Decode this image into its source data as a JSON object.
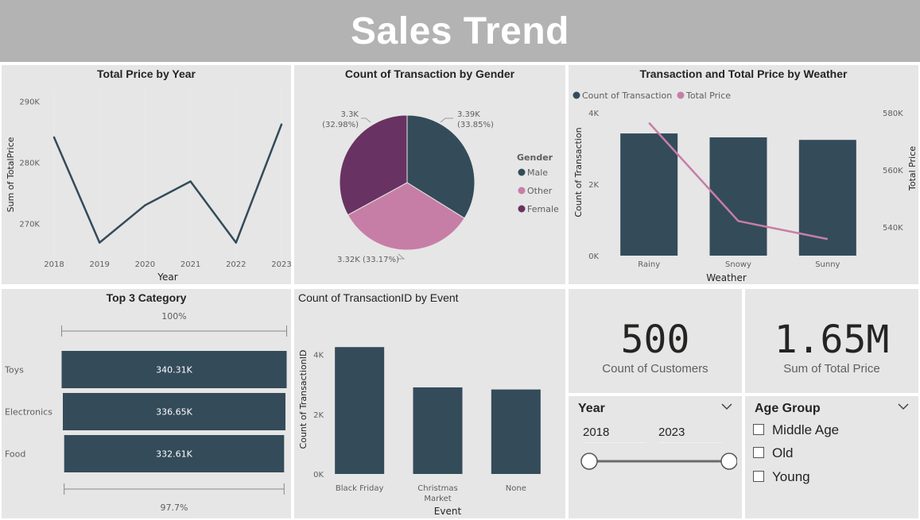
{
  "page": {
    "title": "Sales Trend"
  },
  "colors": {
    "bar": "#344b5a",
    "male": "#344b5a",
    "other": "#c77ea6",
    "female": "#683362",
    "line": "#344b5a",
    "total_price_line": "#c77ea6",
    "panel": "#e6e6e6",
    "header": "#b3b3b3"
  },
  "panels": {
    "price_by_year": {
      "title": "Total Price by Year"
    },
    "gender": {
      "title": "Count of Transaction by Gender"
    },
    "weather": {
      "title": "Transaction and Total Price by Weather"
    },
    "category": {
      "title": "Top 3 Category"
    },
    "event": {
      "title": "Count of TransactionID by Event"
    }
  },
  "chart_data": [
    {
      "id": "price_by_year",
      "type": "line",
      "title": "Total Price by Year",
      "xlabel": "Year",
      "ylabel": "Sum of TotalPrice",
      "x": [
        "2018",
        "2019",
        "2020",
        "2021",
        "2022",
        "2023"
      ],
      "values": [
        284100,
        266900,
        273000,
        276900,
        266900,
        286200
      ],
      "yticks": [
        "290K",
        "280K",
        "270K"
      ],
      "ylim": [
        264000,
        292000
      ]
    },
    {
      "id": "gender",
      "type": "pie",
      "title": "Count of Transaction by Gender",
      "legend_title": "Gender",
      "slices": [
        {
          "name": "Male",
          "value": 3390,
          "label": "3.39K",
          "pct": "(33.85%)"
        },
        {
          "name": "Other",
          "value": 3320,
          "label": "3.32K (33.17%)",
          "pct": ""
        },
        {
          "name": "Female",
          "value": 3300,
          "label": "3.3K",
          "pct": "(32.98%)"
        }
      ]
    },
    {
      "id": "weather",
      "type": "bar",
      "title": "Transaction and Total Price by Weather",
      "xlabel": "Weather",
      "ylabel": "Count of Transaction",
      "y2label": "Total Price",
      "categories": [
        "Rainy",
        "Snowy",
        "Sunny"
      ],
      "series": [
        {
          "name": "Count of Transaction",
          "values": [
            3420,
            3310,
            3240
          ]
        },
        {
          "name": "Total Price",
          "values": [
            576500,
            542100,
            535800
          ]
        }
      ],
      "yticks": [
        "4K",
        "2K",
        "0K"
      ],
      "y2ticks": [
        "580K",
        "560K",
        "540K"
      ],
      "ylim": [
        0,
        4000
      ],
      "y2lim": [
        530000,
        580000
      ]
    },
    {
      "id": "category",
      "type": "bar",
      "title": "Top 3 Category",
      "categories": [
        "Toys",
        "Electronics",
        "Food"
      ],
      "values": [
        340310,
        336650,
        332610
      ],
      "labels": [
        "340.31K",
        "336.65K",
        "332.61K"
      ],
      "top_label": "100%",
      "bottom_label": "97.7%"
    },
    {
      "id": "event",
      "type": "bar",
      "title": "Count of TransactionID by Event",
      "xlabel": "Event",
      "ylabel": "Count of TransactionID",
      "categories": [
        "Black Friday",
        "Christmas Market",
        "None"
      ],
      "tick_lines": [
        [
          "Black Friday"
        ],
        [
          "Christmas",
          "Market"
        ],
        [
          "None"
        ]
      ],
      "values": [
        4250,
        2900,
        2830
      ],
      "yticks": [
        "4K",
        "2K",
        "0K"
      ],
      "ylim": [
        0,
        5000
      ]
    }
  ],
  "kpis": {
    "customers": {
      "value": "500",
      "label": "Count of Customers"
    },
    "total_price": {
      "value": "1.65M",
      "label": "Sum of Total Price"
    }
  },
  "year_slicer": {
    "title": "Year",
    "start": "2018",
    "end": "2023",
    "range_fraction": [
      0,
      1
    ]
  },
  "age_slicer": {
    "title": "Age Group",
    "options": [
      "Middle Age",
      "Old",
      "Young"
    ]
  }
}
